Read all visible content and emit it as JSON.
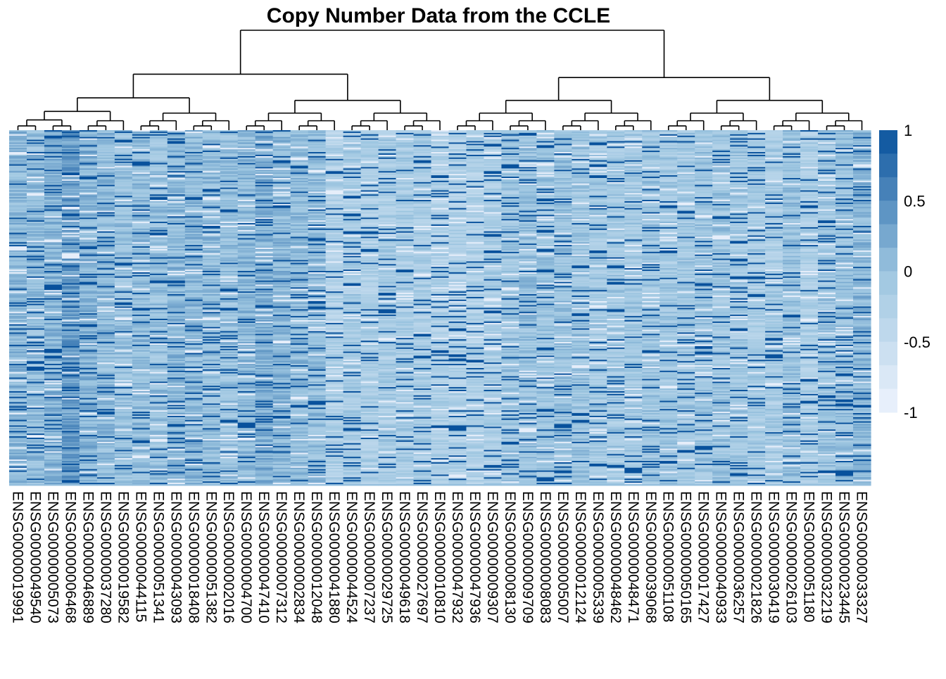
{
  "chart_data": {
    "type": "heatmap",
    "title": "Copy Number Data from the CCLE",
    "color_scale": {
      "min": -1,
      "max": 1,
      "ticks": [
        1,
        0.5,
        0,
        -0.5,
        -1
      ],
      "tick_labels": [
        "1",
        "0.5",
        "0",
        "-0.5",
        "-1"
      ],
      "low_color": "#eef3fd",
      "mid_color": "#9cc5e0",
      "high_color": "#08519c"
    },
    "columns": [
      "ENSG00000019991",
      "ENSG00000049540",
      "ENSG00000005073",
      "ENSG00000006468",
      "ENSG00000046889",
      "ENSG00000037280",
      "ENSG00000019582",
      "ENSG00000044115",
      "ENSG00000051341",
      "ENSG00000043093",
      "ENSG00000018408",
      "ENSG00000051382",
      "ENSG00000002016",
      "ENSG00000004700",
      "ENSG00000047410",
      "ENSG00000007312",
      "ENSG00000002834",
      "ENSG00000012048",
      "ENSG00000041880",
      "ENSG00000044524",
      "ENSG00000007237",
      "ENSG00000029725",
      "ENSG00000049618",
      "ENSG00000027697",
      "ENSG00000010810",
      "ENSG00000047932",
      "ENSG00000047936",
      "ENSG00000009307",
      "ENSG00000008130",
      "ENSG00000009709",
      "ENSG00000008083",
      "ENSG00000005007",
      "ENSG00000012124",
      "ENSG00000005339",
      "ENSG00000048462",
      "ENSG00000048471",
      "ENSG00000039068",
      "ENSG00000051108",
      "ENSG00000050165",
      "ENSG00000017427",
      "ENSG00000040933",
      "ENSG00000036257",
      "ENSG00000021826",
      "ENSG00000030419",
      "ENSG00000026103",
      "ENSG00000051180",
      "ENSG00000032219",
      "ENSG00000023445",
      "ENSG00000033327"
    ],
    "column_mean_level": [
      0.45,
      0.4,
      0.5,
      0.7,
      0.5,
      0.4,
      0.35,
      0.4,
      0.35,
      0.45,
      0.45,
      0.4,
      0.35,
      0.45,
      0.55,
      0.45,
      0.4,
      0.4,
      0.1,
      0.2,
      0.15,
      0.2,
      0.2,
      0.2,
      0.1,
      0.1,
      0.1,
      0.15,
      0.3,
      0.35,
      0.3,
      0.35,
      0.3,
      0.25,
      0.25,
      0.25,
      0.3,
      0.25,
      0.25,
      0.3,
      0.3,
      0.25,
      0.2,
      0.2,
      0.35,
      0.15,
      0.3,
      0.35,
      0.45
    ],
    "dendrogram": "column clustering shown above heatmap",
    "grid": false,
    "legend_placement": "right"
  }
}
